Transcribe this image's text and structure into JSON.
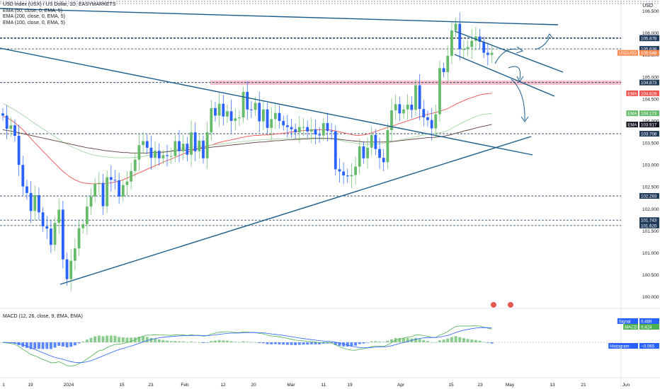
{
  "header": {
    "title": "USD Index (USX) / US Dollar, 1D, EASYMARKETS",
    "indicators": [
      "EMA (50, close, 0, EMA, 5)",
      "EMA (200, close, 0, EMA, 5)",
      "EMA (100, close, 0, EMA, 5)"
    ],
    "currency": "USD"
  },
  "macd_panel": {
    "title": "MACD (12, 26, close, 9, EMA, EMA)",
    "badges": [
      {
        "label": "Signal",
        "value": "0.489",
        "color": "#2962ff"
      },
      {
        "label": "MACD",
        "value": "0.424",
        "color": "#4caf50"
      },
      {
        "label": "Histogram",
        "value": "−0.065",
        "color": "#2962ff"
      }
    ]
  },
  "colors": {
    "up": "#66bb6a",
    "down": "#2962ff",
    "ema50": "#ef5350",
    "ema100": "#a5d6a7",
    "ema200": "#5d4037",
    "trend": "#1a5c8a"
  },
  "chart_data": {
    "type": "candlestick",
    "title": "USD Index (USX) / US Dollar, 1D, EASYMARKETS",
    "ylim": [
      99.8,
      106.75
    ],
    "price_ticks": [
      "106.500",
      "106.000",
      "105.500",
      "105.000",
      "104.500",
      "104.000",
      "103.500",
      "103.000",
      "102.500",
      "102.000",
      "101.500",
      "101.000",
      "100.500",
      "100.000"
    ],
    "x_ticks": [
      "1",
      "19",
      "2024",
      "15",
      "23",
      "Feb",
      "12",
      "20",
      "Mar",
      "11",
      "19",
      "Apr",
      "15",
      "23",
      "May",
      "13",
      "21",
      "Jun"
    ],
    "level_labels": [
      {
        "value": "105.888",
        "style": "dark"
      },
      {
        "value": "105.878",
        "style": "dark"
      },
      {
        "value": "105.638",
        "style": "dark"
      },
      {
        "value": "105.548",
        "style": "orange",
        "prefix": "USDUSD"
      },
      {
        "value": "104.873",
        "style": "dark"
      },
      {
        "value": "104.628",
        "style": "red",
        "prefix": "EMA"
      },
      {
        "value": "104.173",
        "style": "green",
        "prefix": "EMA"
      },
      {
        "value": "103.917",
        "style": "black",
        "prefix": "EMA"
      },
      {
        "value": "103.708",
        "style": "dark"
      },
      {
        "value": "102.293",
        "style": "dark"
      },
      {
        "value": "101.743",
        "style": "dark"
      },
      {
        "value": "101.620",
        "style": "dark"
      }
    ],
    "levels": [
      105.888,
      105.878,
      105.638,
      104.873,
      103.708,
      102.293,
      101.743,
      101.62
    ],
    "resistance_zone": [
      104.82,
      104.92
    ],
    "series": [
      {
        "name": "USDUSD",
        "values": [
          104.12,
          103.82,
          103.9,
          103.66,
          103.0,
          102.51,
          102.36,
          101.95,
          102.31,
          101.92,
          101.6,
          101.55,
          101.18,
          101.68,
          101.98,
          100.85,
          100.4,
          100.82,
          101.1,
          101.56,
          101.65,
          102.05,
          102.28,
          102.57,
          102.59,
          102.06,
          102.72,
          102.66,
          102.65,
          102.28,
          102.54,
          102.62,
          102.86,
          103.12,
          103.45,
          103.54,
          103.39,
          103.16,
          103.32,
          103.15,
          103.22,
          103.2,
          103.2,
          103.54,
          103.31,
          103.48,
          103.23,
          103.74,
          103.31,
          103.55,
          103.15,
          103.74,
          104.29,
          104.12,
          104.39,
          104.1,
          104.22,
          104.0,
          104.06,
          104.08,
          104.66,
          104.26,
          104.25,
          104.41,
          103.99,
          104.26,
          103.84,
          104.04,
          104.18,
          104.0,
          103.9,
          103.86,
          103.81,
          103.74,
          103.86,
          103.86,
          103.76,
          103.81,
          103.69,
          103.67,
          103.95,
          103.77,
          103.76,
          102.9,
          102.85,
          102.76,
          102.74,
          102.77,
          102.96,
          103.42,
          103.15,
          103.39,
          103.68,
          103.36,
          103.16,
          103.06,
          103.79,
          104.24,
          104.38,
          104.17,
          104.26,
          104.37,
          104.25,
          104.81,
          104.27,
          104.08,
          104.02,
          103.83,
          104.15,
          105.2,
          105.11,
          105.48,
          106.06,
          106.21,
          105.63,
          105.63,
          105.68,
          105.82,
          105.92,
          105.8,
          105.55,
          105.5,
          105.55
        ]
      },
      {
        "name": "EMA 50",
        "values": [
          104.1,
          104.08,
          104.02,
          103.96,
          103.88,
          103.8,
          103.7,
          103.6,
          103.5,
          103.41,
          103.31,
          103.22,
          103.12,
          103.03,
          102.94,
          102.85,
          102.78,
          102.71,
          102.66,
          102.62,
          102.59,
          102.58,
          102.57,
          102.57,
          102.57,
          102.57,
          102.58,
          102.59,
          102.61,
          102.63,
          102.66,
          102.7,
          102.74,
          102.78,
          102.82,
          102.86,
          102.9,
          102.94,
          102.98,
          103.02,
          103.06,
          103.1,
          103.13,
          103.17,
          103.21,
          103.25,
          103.28,
          103.32,
          103.35,
          103.38,
          103.4,
          103.42,
          103.45,
          103.48,
          103.51,
          103.53,
          103.55,
          103.57,
          103.59,
          103.61,
          103.63,
          103.65,
          103.66,
          103.67,
          103.67,
          103.68,
          103.68,
          103.69,
          103.7,
          103.71,
          103.72,
          103.73,
          103.75,
          103.76,
          103.77,
          103.78,
          103.79,
          103.79,
          103.8,
          103.8,
          103.8,
          103.8,
          103.79,
          103.77,
          103.75,
          103.73,
          103.71,
          103.69,
          103.67,
          103.67,
          103.68,
          103.7,
          103.73,
          103.76,
          103.79,
          103.82,
          103.85,
          103.88,
          103.91,
          103.94,
          103.97,
          104.0,
          104.03,
          104.06,
          104.09,
          104.12,
          104.15,
          104.17,
          104.19,
          104.22,
          104.25,
          104.28,
          104.33,
          104.38,
          104.42,
          104.46,
          104.5,
          104.53,
          104.56,
          104.59,
          104.61,
          104.62,
          104.63
        ]
      },
      {
        "name": "EMA 100",
        "values": [
          104.4,
          104.35,
          104.3,
          104.25,
          104.19,
          104.13,
          104.07,
          104.0,
          103.94,
          103.88,
          103.82,
          103.76,
          103.7,
          103.64,
          103.58,
          103.52,
          103.47,
          103.42,
          103.38,
          103.34,
          103.3,
          103.27,
          103.24,
          103.22,
          103.2,
          103.19,
          103.18,
          103.17,
          103.16,
          103.16,
          103.16,
          103.16,
          103.16,
          103.17,
          103.18,
          103.19,
          103.21,
          103.22,
          103.24,
          103.26,
          103.28,
          103.3,
          103.32,
          103.34,
          103.36,
          103.38,
          103.39,
          103.4,
          103.41,
          103.42,
          103.43,
          103.44,
          103.45,
          103.46,
          103.47,
          103.48,
          103.49,
          103.5,
          103.51,
          103.52,
          103.53,
          103.54,
          103.55,
          103.56,
          103.57,
          103.57,
          103.58,
          103.58,
          103.59,
          103.59,
          103.59,
          103.6,
          103.6,
          103.6,
          103.6,
          103.61,
          103.61,
          103.61,
          103.61,
          103.61,
          103.61,
          103.6,
          103.59,
          103.58,
          103.56,
          103.54,
          103.52,
          103.51,
          103.49,
          103.48,
          103.47,
          103.47,
          103.47,
          103.47,
          103.48,
          103.49,
          103.5,
          103.52,
          103.54,
          103.56,
          103.58,
          103.6,
          103.62,
          103.64,
          103.66,
          103.68,
          103.7,
          103.71,
          103.72,
          103.73,
          103.75,
          103.78,
          103.83,
          103.88,
          103.93,
          103.98,
          104.02,
          104.06,
          104.1,
          104.13,
          104.15,
          104.16,
          104.17
        ]
      },
      {
        "name": "EMA 200",
        "values": [
          103.8,
          103.78,
          103.77,
          103.75,
          103.73,
          103.71,
          103.69,
          103.67,
          103.65,
          103.63,
          103.61,
          103.59,
          103.57,
          103.55,
          103.53,
          103.51,
          103.49,
          103.47,
          103.45,
          103.43,
          103.41,
          103.39,
          103.38,
          103.36,
          103.35,
          103.33,
          103.32,
          103.31,
          103.3,
          103.29,
          103.28,
          103.28,
          103.27,
          103.27,
          103.27,
          103.27,
          103.27,
          103.28,
          103.28,
          103.29,
          103.29,
          103.3,
          103.31,
          103.32,
          103.33,
          103.33,
          103.34,
          103.35,
          103.36,
          103.37,
          103.38,
          103.39,
          103.4,
          103.41,
          103.42,
          103.43,
          103.44,
          103.45,
          103.46,
          103.47,
          103.48,
          103.49,
          103.5,
          103.51,
          103.52,
          103.52,
          103.53,
          103.54,
          103.55,
          103.55,
          103.56,
          103.57,
          103.57,
          103.58,
          103.58,
          103.59,
          103.59,
          103.6,
          103.6,
          103.6,
          103.6,
          103.6,
          103.6,
          103.59,
          103.58,
          103.57,
          103.56,
          103.55,
          103.54,
          103.53,
          103.52,
          103.52,
          103.52,
          103.52,
          103.52,
          103.52,
          103.53,
          103.53,
          103.54,
          103.55,
          103.56,
          103.57,
          103.58,
          103.59,
          103.6,
          103.61,
          103.62,
          103.62,
          103.63,
          103.64,
          103.65,
          103.67,
          103.69,
          103.72,
          103.74,
          103.77,
          103.79,
          103.81,
          103.84,
          103.86,
          103.88,
          103.9,
          103.92
        ]
      }
    ]
  }
}
